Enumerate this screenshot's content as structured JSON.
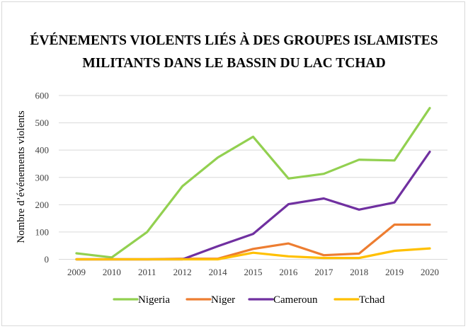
{
  "chart_data": {
    "type": "line",
    "title_lines": [
      "ÉVÉNEMENTS VIOLENTS LIÉS À DES GROUPES ISLAMISTES",
      "MILITANTS DANS LE BASSIN DU LAC TCHAD"
    ],
    "xlabel": "",
    "ylabel": "Nombre d’événements violents",
    "categories": [
      "2009",
      "2010",
      "2011",
      "2012",
      "2014",
      "2015",
      "2016",
      "2017",
      "2018",
      "2019",
      "2020"
    ],
    "ylim": [
      0,
      600
    ],
    "yticks": [
      0,
      100,
      200,
      300,
      400,
      500,
      600
    ],
    "grid": true,
    "legend_position": "bottom",
    "series": [
      {
        "name": "Nigeria",
        "color": "#92d050",
        "values": [
          22,
          7,
          100,
          268,
          373,
          449,
          296,
          313,
          365,
          362,
          554
        ]
      },
      {
        "name": "Niger",
        "color": "#ed7d31",
        "values": [
          0,
          0,
          0,
          2,
          2,
          38,
          58,
          15,
          21,
          127,
          127
        ]
      },
      {
        "name": "Cameroun",
        "color": "#7030a0",
        "values": [
          0,
          0,
          0,
          0,
          48,
          93,
          202,
          223,
          182,
          208,
          394
        ]
      },
      {
        "name": "Tchad",
        "color": "#ffc000",
        "values": [
          0,
          0,
          0,
          0,
          0,
          24,
          11,
          5,
          5,
          31,
          40
        ]
      }
    ]
  }
}
